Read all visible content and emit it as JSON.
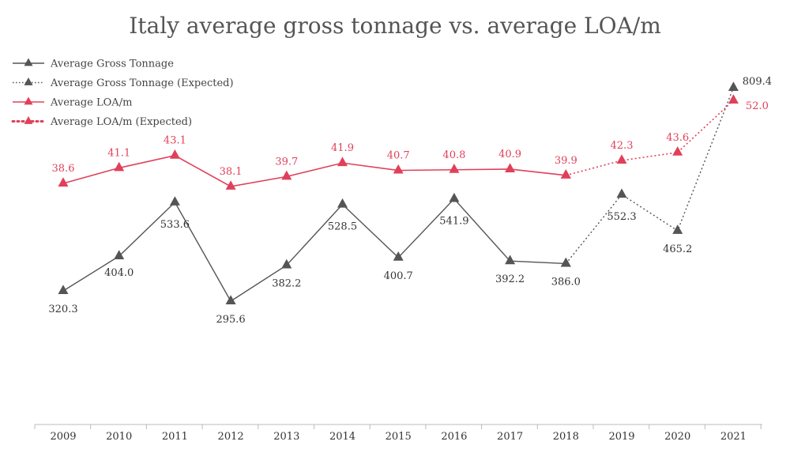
{
  "chart_data": {
    "type": "line",
    "title": "Italy average gross tonnage vs. average LOA/m",
    "categories": [
      "2009",
      "2010",
      "2011",
      "2012",
      "2013",
      "2014",
      "2015",
      "2016",
      "2017",
      "2018",
      "2019",
      "2020",
      "2021"
    ],
    "xlabel": "",
    "ylabel": "",
    "legend_position": "top-left",
    "series": [
      {
        "name": "Average Gross Tonnage",
        "color": "#555555",
        "style": "solid",
        "marker": "triangle",
        "x": [
          "2009",
          "2010",
          "2011",
          "2012",
          "2013",
          "2014",
          "2015",
          "2016",
          "2017",
          "2018"
        ],
        "values": [
          320.3,
          404.0,
          533.6,
          295.6,
          382.2,
          528.5,
          400.7,
          541.9,
          392.2,
          386.0
        ],
        "labels": [
          "320.3",
          "404.0",
          "533.6",
          "295.6",
          "382.2",
          "528.5",
          "400.7",
          "541.9",
          "392.2",
          "386.0"
        ]
      },
      {
        "name": "Average Gross Tonnage (Expected)",
        "color": "#555555",
        "style": "dotted",
        "marker": "triangle",
        "x": [
          "2018",
          "2019",
          "2020",
          "2021"
        ],
        "values": [
          386.0,
          552.3,
          465.2,
          809.4
        ],
        "labels": [
          "",
          "552.3",
          "465.2",
          "809.4"
        ]
      },
      {
        "name": "Average LOA/m",
        "color": "#e0405a",
        "style": "solid",
        "marker": "triangle",
        "x": [
          "2009",
          "2010",
          "2011",
          "2012",
          "2013",
          "2014",
          "2015",
          "2016",
          "2017",
          "2018"
        ],
        "values": [
          38.6,
          41.1,
          43.1,
          38.1,
          39.7,
          41.9,
          40.7,
          40.8,
          40.9,
          39.9
        ],
        "labels": [
          "38.6",
          "41.1",
          "43.1",
          "38.1",
          "39.7",
          "41.9",
          "40.7",
          "40.8",
          "40.9",
          "39.9"
        ]
      },
      {
        "name": "Average LOA/m (Expected)",
        "color": "#e0405a",
        "style": "dotted",
        "marker": "triangle",
        "x": [
          "2018",
          "2019",
          "2020",
          "2021"
        ],
        "values": [
          39.9,
          42.3,
          43.6,
          52.0
        ],
        "labels": [
          "",
          "42.3",
          "43.6",
          "52.0"
        ]
      }
    ]
  }
}
